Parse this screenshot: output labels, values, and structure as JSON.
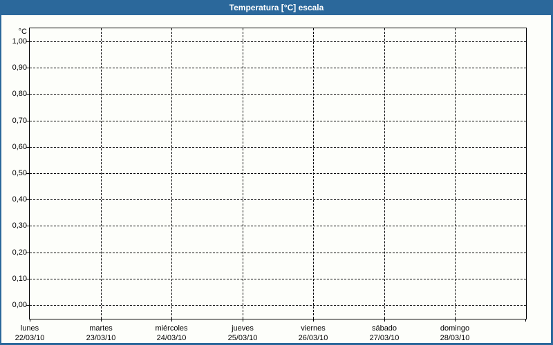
{
  "window": {
    "title": "Temperatura [°C] escala"
  },
  "colors": {
    "titlebar_bg": "#2b689b",
    "window_border": "#2b689b",
    "title_text": "#ffffff",
    "content_bg": "#fdfefa",
    "grid_and_text": "#000000"
  },
  "chart_data": {
    "type": "line",
    "title": "Temperatura [°C] escala",
    "xlabel": "",
    "ylabel": "°C",
    "ylim": [
      0.0,
      1.0
    ],
    "ytick_interval": 0.1,
    "ytick_labels_top_to_bottom": [
      "1,00",
      "0,90",
      "0,80",
      "0,70",
      "0,60",
      "0,50",
      "0,40",
      "0,30",
      "0,20",
      "0,10",
      "0,00"
    ],
    "x_categories": [
      {
        "day": "lunes",
        "date": "22/03/10"
      },
      {
        "day": "martes",
        "date": "23/03/10"
      },
      {
        "day": "miércoles",
        "date": "24/03/10"
      },
      {
        "day": "jueves",
        "date": "25/03/10"
      },
      {
        "day": "viernes",
        "date": "26/03/10"
      },
      {
        "day": "sábado",
        "date": "27/03/10"
      },
      {
        "day": "domingo",
        "date": "28/03/10"
      }
    ],
    "series": [],
    "grid": "dashed",
    "legend": "none"
  }
}
